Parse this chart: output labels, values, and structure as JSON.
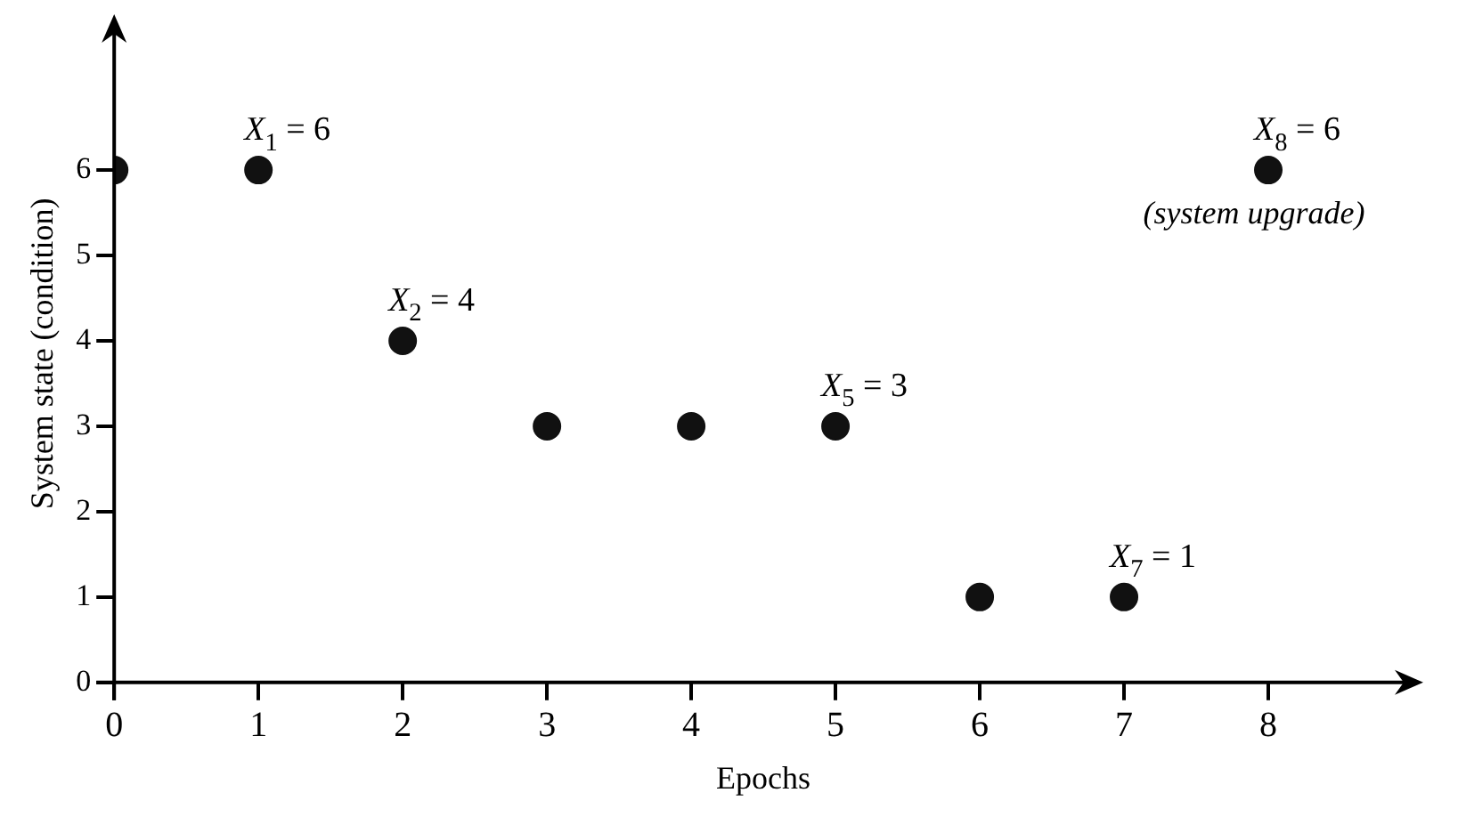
{
  "chart_data": {
    "type": "scatter",
    "xlabel": "Epochs",
    "ylabel": "System state (condition)",
    "x": [
      0,
      1,
      2,
      3,
      4,
      5,
      6,
      7,
      8
    ],
    "values": [
      6,
      6,
      4,
      3,
      3,
      3,
      1,
      1,
      6
    ],
    "color": "#111111",
    "marker": "circle",
    "grid": false,
    "legend": false,
    "xlim": [
      0,
      9
    ],
    "ylim": [
      0,
      7.7
    ],
    "xticks": [
      0,
      1,
      2,
      3,
      4,
      5,
      6,
      7,
      8
    ],
    "yticks": [
      0,
      1,
      2,
      3,
      4,
      5,
      6
    ],
    "annotations": [
      {
        "text": "X$_{1}$ = 6",
        "x": 1,
        "y": 6
      },
      {
        "text": "X$_{2}$ = 4",
        "x": 2,
        "y": 4
      },
      {
        "text": "X$_{5}$ = 3",
        "x": 5,
        "y": 3
      },
      {
        "text": "X$_{7}$ = 1",
        "x": 7,
        "y": 1
      },
      {
        "text": "X$_{8}$ = 6",
        "x": 8,
        "y": 6
      },
      {
        "text": "(system upgrade)",
        "x": 8,
        "y": 6
      }
    ]
  }
}
